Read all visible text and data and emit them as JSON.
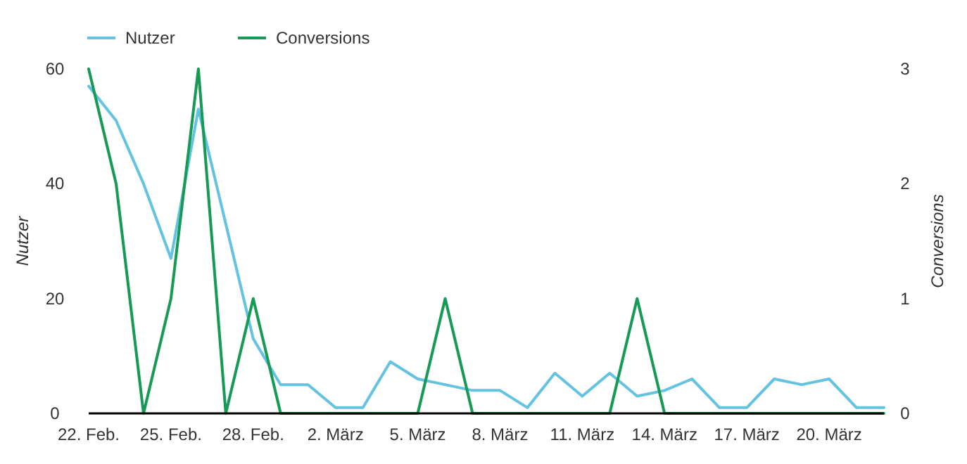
{
  "chart_data": {
    "type": "line",
    "categories": [
      "22. Feb.",
      null,
      null,
      "25. Feb.",
      null,
      null,
      "28. Feb.",
      null,
      null,
      "2. März",
      null,
      null,
      "5. März",
      null,
      null,
      "8. März",
      null,
      null,
      "11. März",
      null,
      null,
      "14. März",
      null,
      null,
      "17. März",
      null,
      null,
      "20. März",
      null,
      null
    ],
    "series": [
      {
        "name": "Nutzer",
        "color": "#63c3e0",
        "values": [
          57,
          51,
          40,
          27,
          53,
          33,
          13,
          5,
          5,
          1,
          1,
          9,
          6,
          5,
          4,
          4,
          1,
          7,
          3,
          7,
          3,
          4,
          6,
          1,
          1,
          6,
          5,
          6,
          1,
          1
        ]
      },
      {
        "name": "Conversions",
        "color": "#169a55",
        "axis": "y2",
        "values": [
          3,
          2,
          0,
          1,
          3,
          0,
          1,
          0,
          0,
          0,
          0,
          0,
          0,
          1,
          0,
          0,
          0,
          0,
          0,
          0,
          1,
          0,
          0,
          0,
          0,
          0,
          0,
          0,
          0,
          0
        ]
      }
    ],
    "ylabel": "Nutzer",
    "y2label": "Conversions",
    "ylim": [
      0,
      60
    ],
    "yticks": [
      0,
      20,
      40,
      60
    ],
    "y2lim": [
      0,
      3
    ],
    "y2ticks": [
      0,
      1,
      2,
      3
    ],
    "grid": false,
    "legend": "top left",
    "marker": "none",
    "line_style": "solid"
  }
}
